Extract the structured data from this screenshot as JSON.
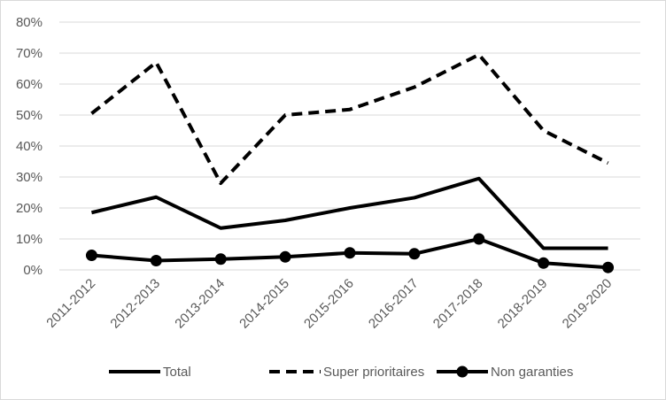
{
  "chart_data": {
    "type": "line",
    "categories": [
      "2011-2012",
      "2012-2013",
      "2013-2014",
      "2014-2015",
      "2015-2016",
      "2016-2017",
      "2017-2018",
      "2018-2019",
      "2019-2020"
    ],
    "ylim": [
      0,
      0.8
    ],
    "yticks": [
      0,
      0.1,
      0.2,
      0.3,
      0.4,
      0.5,
      0.6,
      0.7,
      0.8
    ],
    "ytick_labels": [
      "0%",
      "10%",
      "20%",
      "30%",
      "40%",
      "50%",
      "60%",
      "70%",
      "80%"
    ],
    "grid": "horizontal",
    "legend": "bottom",
    "series": [
      {
        "name": "Total",
        "style": "solid",
        "color": "#000000",
        "values": [
          0.185,
          0.235,
          0.135,
          0.16,
          0.2,
          0.233,
          0.295,
          0.07,
          0.07
        ]
      },
      {
        "name": "Super prioritaires",
        "style": "dashed",
        "color": "#000000",
        "values": [
          0.505,
          0.67,
          0.28,
          0.5,
          0.518,
          0.59,
          0.695,
          0.45,
          0.345
        ]
      },
      {
        "name": "Non garanties",
        "style": "solid-markers",
        "color": "#000000",
        "values": [
          0.047,
          0.03,
          0.035,
          0.042,
          0.055,
          0.052,
          0.1,
          0.022,
          0.008
        ]
      }
    ]
  }
}
